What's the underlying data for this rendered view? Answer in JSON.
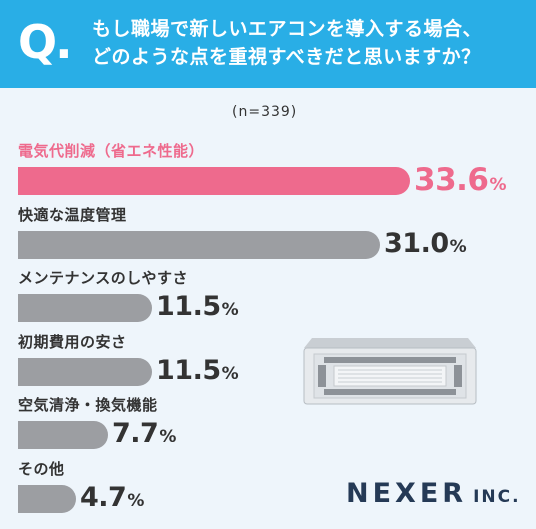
{
  "header": {
    "q_mark": "Q.",
    "question_line1": "もし職場で新しいエアコンを導入する場合、",
    "question_line2": "どのような点を重視すべきだと思いますか？"
  },
  "sample_size": "(n=339)",
  "percent_sign": "%",
  "chart_data": {
    "type": "bar",
    "orientation": "horizontal",
    "unit": "%",
    "categories": [
      "電気代削減（省エネ性能）",
      "快適な温度管理",
      "メンテナンスのしやすさ",
      "初期費用の安さ",
      "空気清浄・換気機能",
      "その他"
    ],
    "values": [
      33.6,
      31.0,
      11.5,
      11.5,
      7.7,
      4.7
    ],
    "value_labels": [
      "33.6",
      "31.0",
      "11.5",
      "11.5",
      "7.7",
      "4.7"
    ],
    "highlight_index": 0,
    "colors": {
      "highlight": "#ee6a8d",
      "default": "#9c9ea2"
    }
  },
  "brand": {
    "name": "NEXER",
    "suffix": "INC."
  },
  "colors": {
    "header": "#29aee6",
    "background": "#eef5fb",
    "brand_text": "#253a56"
  }
}
